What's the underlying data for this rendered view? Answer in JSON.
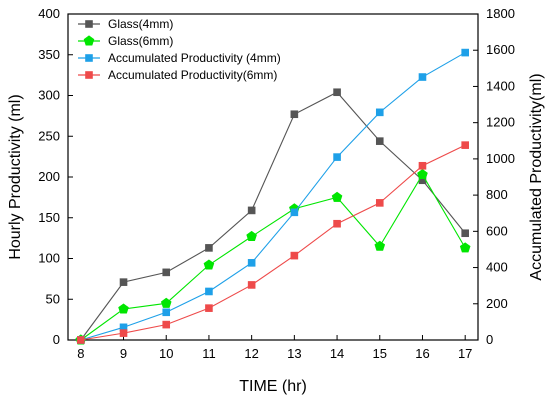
{
  "chart_data": {
    "type": "line",
    "title": "",
    "xlabel": "TIME (hr)",
    "ylabel_left": "Hourly Productivity (ml)",
    "ylabel_right": "Accumulated Productivity(ml)",
    "x": [
      8,
      9,
      10,
      11,
      12,
      13,
      14,
      15,
      16,
      17
    ],
    "x_ticks": [
      "8",
      "9",
      "10",
      "11",
      "12",
      "13",
      "14",
      "15",
      "16",
      "17"
    ],
    "ylim_left": [
      0,
      400
    ],
    "ylim_right": [
      0,
      1800
    ],
    "y_ticks_left": [
      "0",
      "50",
      "100",
      "150",
      "200",
      "250",
      "300",
      "350",
      "400"
    ],
    "y_ticks_right": [
      "0",
      "200",
      "400",
      "600",
      "800",
      "1000",
      "1200",
      "1400",
      "1600",
      "1800"
    ],
    "legend_position": "top-left",
    "grid": false,
    "series": [
      {
        "name": "Glass(4mm)",
        "axis": "left",
        "color": "#555555",
        "marker": "square",
        "values": [
          0,
          71,
          83,
          113,
          159,
          277,
          304,
          244,
          196,
          131
        ]
      },
      {
        "name": "Glass(6mm)",
        "axis": "left",
        "color": "#00e600",
        "marker": "pentagon",
        "values": [
          0,
          38,
          45,
          92,
          127,
          161,
          175,
          115,
          203,
          113
        ]
      },
      {
        "name": "Accumulated Productivity (4mm)",
        "axis": "right",
        "color": "#1ea0e8",
        "marker": "square",
        "values": [
          0,
          70,
          153,
          268,
          426,
          705,
          1010,
          1257,
          1452,
          1587
        ]
      },
      {
        "name": "Accumulated Productivity(6mm)",
        "axis": "right",
        "color": "#ee4a4a",
        "marker": "square",
        "values": [
          0,
          38,
          85,
          176,
          304,
          466,
          642,
          757,
          962,
          1076
        ]
      }
    ]
  }
}
